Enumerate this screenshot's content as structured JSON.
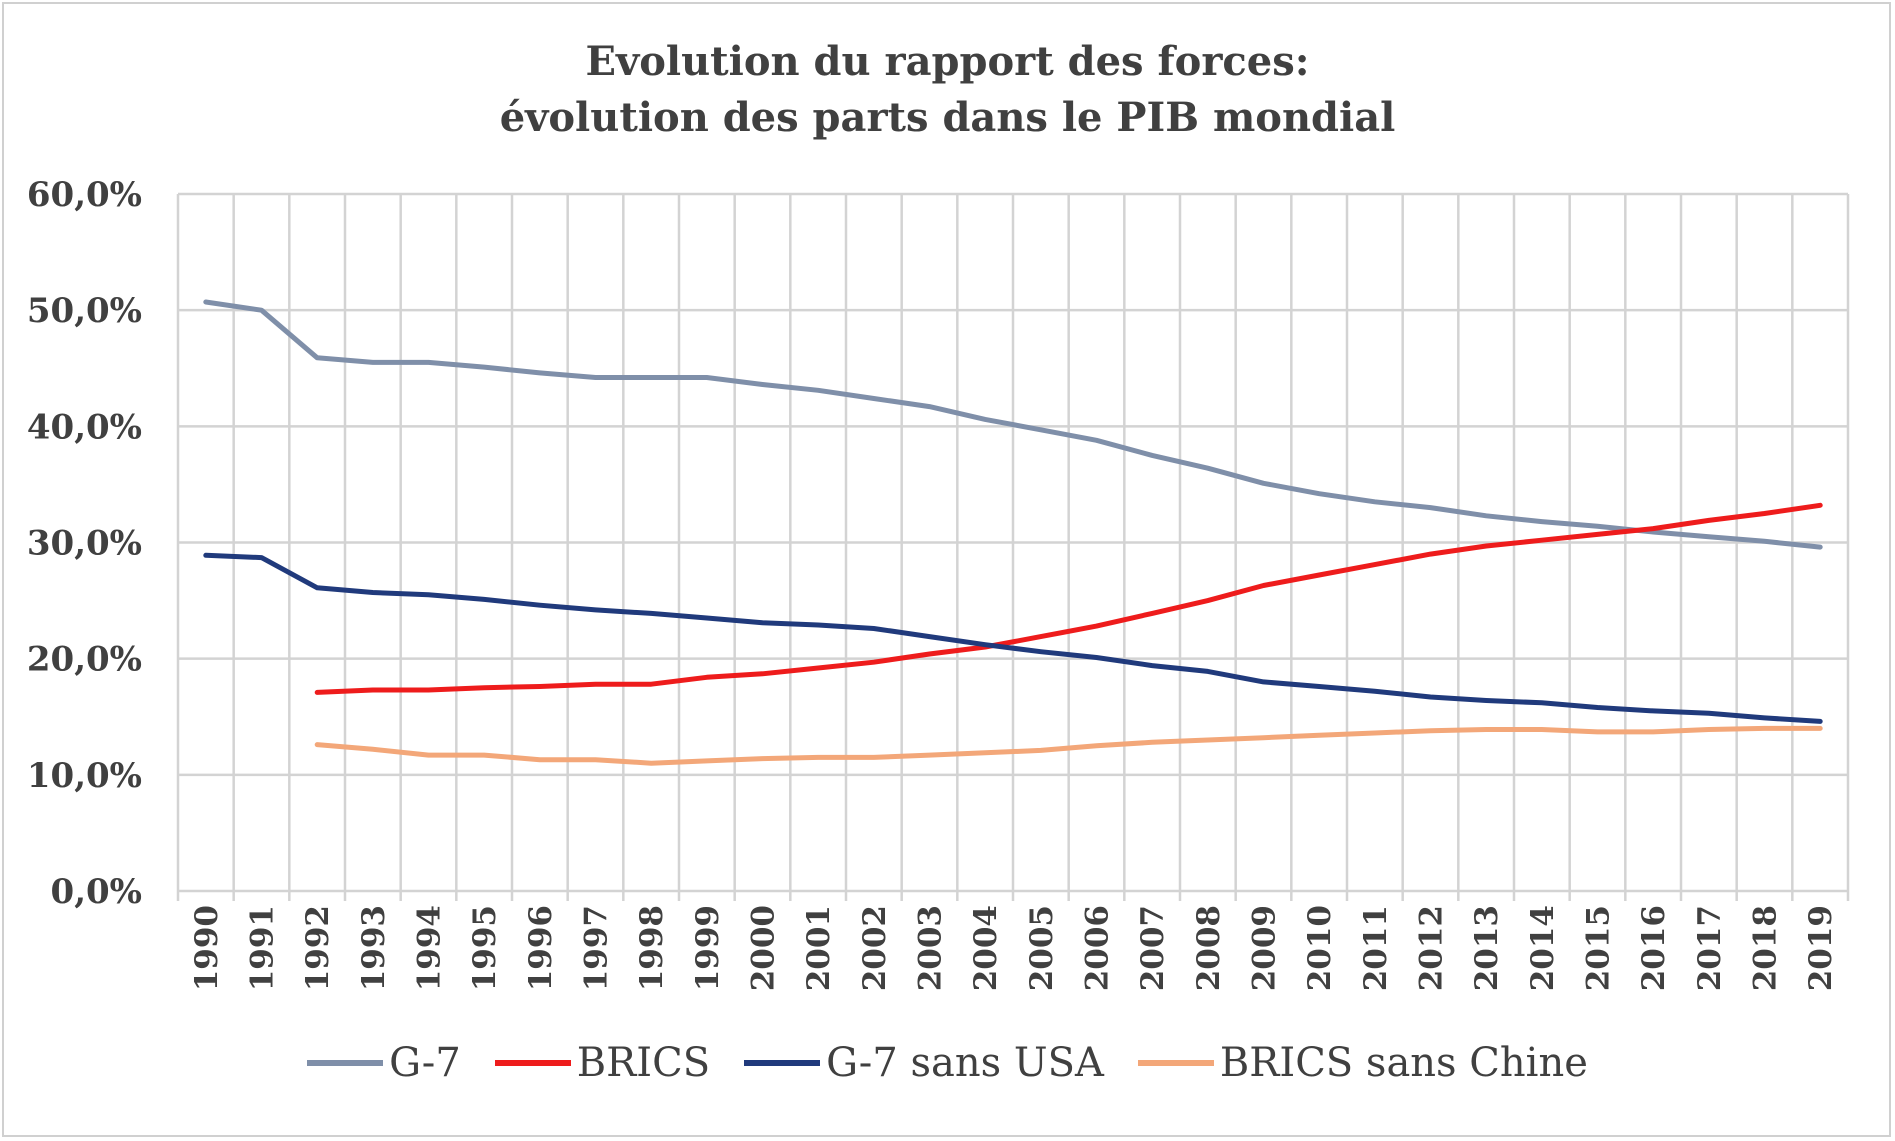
{
  "chart_data": {
    "type": "line",
    "title": "Evolution du rapport des forces:",
    "subtitle": "évolution des parts dans le PIB mondial",
    "xlabel": "",
    "ylabel": "",
    "ylim": [
      0,
      60
    ],
    "yticks": [
      "0,0%",
      "10,0%",
      "20,0%",
      "30,0%",
      "40,0%",
      "50,0%",
      "60,0%"
    ],
    "grid": true,
    "legend_position": "bottom",
    "categories": [
      "1990",
      "1991",
      "1992",
      "1993",
      "1994",
      "1995",
      "1996",
      "1997",
      "1998",
      "1999",
      "2000",
      "2001",
      "2002",
      "2003",
      "2004",
      "2005",
      "2006",
      "2007",
      "2008",
      "2009",
      "2010",
      "2011",
      "2012",
      "2013",
      "2014",
      "2015",
      "2016",
      "2017",
      "2018",
      "2019"
    ],
    "series": [
      {
        "name": "G-7",
        "color": "#7f8fa9",
        "values": [
          50.7,
          50.0,
          45.9,
          45.5,
          45.5,
          45.1,
          44.6,
          44.2,
          44.2,
          44.2,
          43.6,
          43.1,
          42.4,
          41.7,
          40.6,
          39.7,
          38.8,
          37.5,
          36.4,
          35.1,
          34.2,
          33.5,
          33.0,
          32.3,
          31.8,
          31.4,
          30.9,
          30.5,
          30.1,
          29.6
        ]
      },
      {
        "name": "BRICS",
        "color": "#ee1c1c",
        "values": [
          null,
          null,
          17.1,
          17.3,
          17.3,
          17.5,
          17.6,
          17.8,
          17.8,
          18.4,
          18.7,
          19.2,
          19.7,
          20.4,
          21.0,
          21.9,
          22.8,
          23.9,
          25.0,
          26.3,
          27.2,
          28.1,
          29.0,
          29.7,
          30.2,
          30.7,
          31.2,
          31.9,
          32.5,
          33.2
        ]
      },
      {
        "name": "G-7 sans USA",
        "color": "#203a7c",
        "values": [
          28.9,
          28.7,
          26.1,
          25.7,
          25.5,
          25.1,
          24.6,
          24.2,
          23.9,
          23.5,
          23.1,
          22.9,
          22.6,
          21.9,
          21.2,
          20.6,
          20.1,
          19.4,
          18.9,
          18.0,
          17.6,
          17.2,
          16.7,
          16.4,
          16.2,
          15.8,
          15.5,
          15.3,
          14.9,
          14.6
        ]
      },
      {
        "name": "BRICS sans Chine",
        "color": "#f3a779",
        "values": [
          null,
          null,
          12.6,
          12.2,
          11.7,
          11.7,
          11.3,
          11.3,
          11.0,
          11.2,
          11.4,
          11.5,
          11.5,
          11.7,
          11.9,
          12.1,
          12.5,
          12.8,
          13.0,
          13.2,
          13.4,
          13.6,
          13.8,
          13.9,
          13.9,
          13.7,
          13.7,
          13.9,
          14.0,
          14.0
        ]
      }
    ]
  }
}
